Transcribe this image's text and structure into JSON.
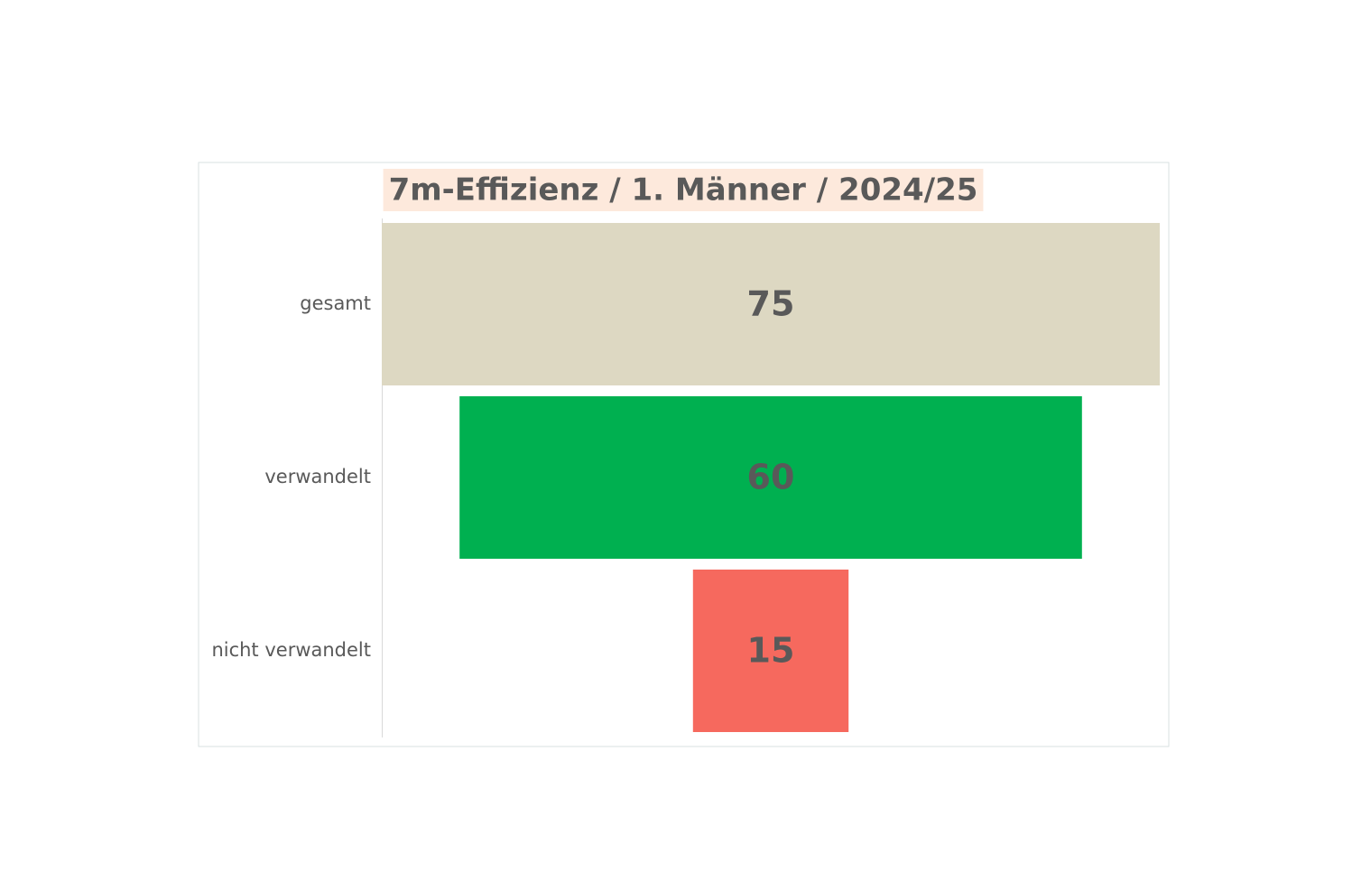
{
  "chart_data": {
    "type": "funnel",
    "title": "7m-Effizienz / 1. Männer / 2024/25",
    "categories": [
      "gesamt",
      "verwandelt",
      "nicht verwandelt"
    ],
    "values": [
      75,
      60,
      15
    ],
    "colors": [
      "#ddd8c2",
      "#00b050",
      "#f6695e"
    ]
  }
}
